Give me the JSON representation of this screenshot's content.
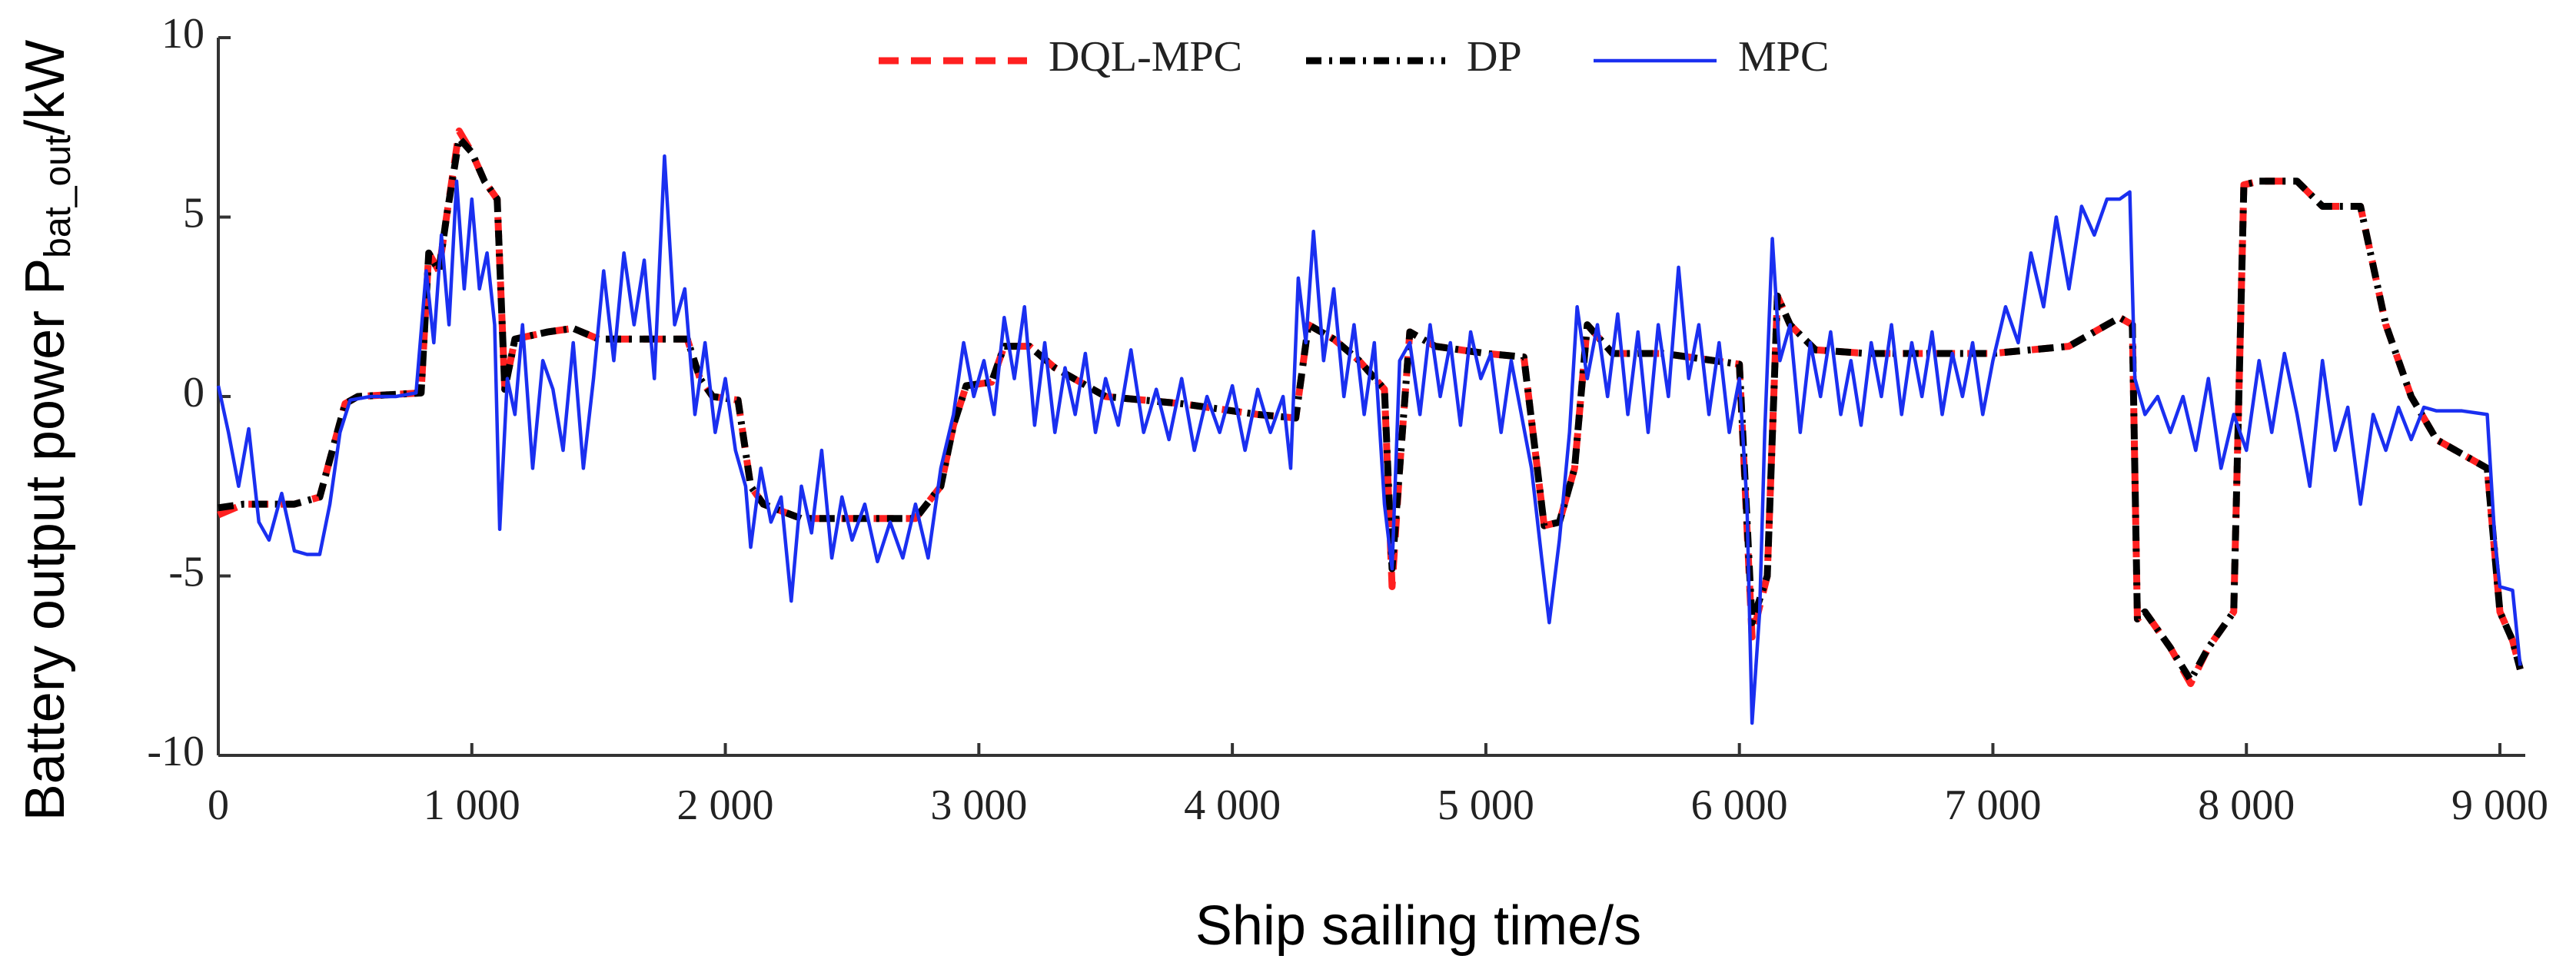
{
  "chart_data": {
    "type": "line",
    "ylabel": "Battery output power P",
    "ylabel_sub": "bat_out",
    "ylabel_unit": "/kW",
    "xlabel": "Ship sailing time/s",
    "xlim": [
      0,
      9100
    ],
    "ylim": [
      -10,
      10
    ],
    "xticks": [
      0,
      {
        "value": 1000,
        "label": "1 000"
      },
      {
        "value": 2000,
        "label": "2 000"
      },
      {
        "value": 3000,
        "label": "3 000"
      },
      {
        "value": 4000,
        "label": "4 000"
      },
      {
        "value": 5000,
        "label": "5 000"
      },
      {
        "value": 6000,
        "label": "6 000"
      },
      {
        "value": 7000,
        "label": "7 000"
      },
      {
        "value": 8000,
        "label": "8 000"
      },
      {
        "value": 9000,
        "label": "9 000"
      }
    ],
    "yticks": [
      -10,
      -5,
      0,
      5,
      10
    ],
    "grid": false,
    "legend": "top",
    "series": [
      {
        "name": "DQL-MPC",
        "color": "#ff2020",
        "dash": "dashed",
        "x": [
          0,
          100,
          300,
          400,
          450,
          500,
          550,
          800,
          830,
          870,
          900,
          950,
          1000,
          1050,
          1100,
          1130,
          1170,
          1300,
          1400,
          1500,
          1850,
          1900,
          1950,
          2050,
          2100,
          2150,
          2300,
          2500,
          2750,
          2850,
          2900,
          2950,
          3050,
          3100,
          3200,
          3300,
          3400,
          3500,
          3800,
          4100,
          4250,
          4300,
          4400,
          4500,
          4600,
          4630,
          4660,
          4700,
          4800,
          5000,
          5150,
          5230,
          5290,
          5350,
          5400,
          5500,
          5700,
          5900,
          6000,
          6050,
          6110,
          6150,
          6200,
          6300,
          6500,
          7000,
          7300,
          7500,
          7550,
          7570,
          7600,
          7700,
          7780,
          7850,
          7950,
          7990,
          8050,
          8200,
          8300,
          8450,
          8550,
          8650,
          8750,
          8950,
          9000,
          9050,
          9080
        ],
        "values": [
          -3.3,
          -3.0,
          -3.0,
          -2.8,
          -1.5,
          -0.2,
          0,
          0.1,
          4.0,
          3.5,
          5,
          7.4,
          6.8,
          6,
          5.5,
          0.2,
          1.6,
          1.8,
          1.9,
          1.6,
          1.6,
          0.5,
          0,
          -0.1,
          -2.5,
          -3.0,
          -3.4,
          -3.4,
          -3.4,
          -2.5,
          -0.8,
          0.3,
          0.4,
          1.4,
          1.4,
          0.8,
          0.4,
          0,
          -0.2,
          -0.5,
          -0.6,
          2.0,
          1.6,
          1.0,
          0.2,
          -5.3,
          -2.0,
          1.8,
          1.4,
          1.2,
          1.1,
          -3.6,
          -3.5,
          -2.0,
          2.0,
          1.2,
          1.2,
          1.0,
          0.9,
          -6.7,
          -5.0,
          2.8,
          2.0,
          1.3,
          1.2,
          1.2,
          1.4,
          2.2,
          2.0,
          -6.2,
          -6.0,
          -7.0,
          -8.0,
          -7.0,
          -6.0,
          5.9,
          6.0,
          6.0,
          5.3,
          5.3,
          2.0,
          0.0,
          -1.2,
          -2.0,
          -6.0,
          -6.8,
          -7.6
        ]
      },
      {
        "name": "DP",
        "color": "#000000",
        "dash": "dashdot",
        "x": [
          0,
          100,
          300,
          400,
          450,
          500,
          550,
          800,
          830,
          870,
          900,
          950,
          1000,
          1050,
          1100,
          1130,
          1170,
          1300,
          1400,
          1500,
          1850,
          1900,
          1950,
          2050,
          2100,
          2150,
          2300,
          2500,
          2750,
          2850,
          2900,
          2950,
          3050,
          3100,
          3200,
          3300,
          3400,
          3500,
          3800,
          4100,
          4250,
          4300,
          4400,
          4500,
          4600,
          4630,
          4660,
          4700,
          4800,
          5000,
          5150,
          5230,
          5290,
          5350,
          5400,
          5500,
          5700,
          5900,
          6000,
          6050,
          6110,
          6150,
          6200,
          6300,
          6500,
          7000,
          7300,
          7500,
          7550,
          7570,
          7600,
          7700,
          7780,
          7850,
          7950,
          7990,
          8050,
          8200,
          8300,
          8450,
          8550,
          8650,
          8750,
          8950,
          9000,
          9050,
          9080
        ],
        "values": [
          -3.1,
          -3.0,
          -3.0,
          -2.8,
          -1.5,
          -0.2,
          0,
          0.1,
          4.0,
          3.5,
          5,
          7.2,
          6.8,
          6,
          5.5,
          0.2,
          1.6,
          1.8,
          1.9,
          1.6,
          1.6,
          0.5,
          0,
          -0.1,
          -2.5,
          -3.0,
          -3.4,
          -3.4,
          -3.4,
          -2.5,
          -0.8,
          0.3,
          0.4,
          1.4,
          1.4,
          0.8,
          0.4,
          0,
          -0.2,
          -0.5,
          -0.6,
          2.0,
          1.6,
          1.0,
          0.2,
          -4.8,
          -2.0,
          1.8,
          1.4,
          1.2,
          1.1,
          -3.6,
          -3.5,
          -2.0,
          2.0,
          1.2,
          1.2,
          1.0,
          0.9,
          -6.3,
          -5.0,
          2.8,
          2.0,
          1.3,
          1.2,
          1.2,
          1.4,
          2.2,
          2.0,
          -6.2,
          -6.0,
          -7.0,
          -7.9,
          -7.0,
          -6.0,
          5.9,
          6.0,
          6.0,
          5.3,
          5.3,
          2.0,
          0.0,
          -1.2,
          -2.0,
          -6.0,
          -6.8,
          -7.6
        ]
      },
      {
        "name": "MPC",
        "color": "#1a2ff0",
        "dash": "solid",
        "x": [
          0,
          40,
          80,
          120,
          160,
          200,
          250,
          300,
          350,
          400,
          440,
          480,
          520,
          600,
          700,
          780,
          820,
          850,
          880,
          910,
          940,
          970,
          1000,
          1030,
          1060,
          1090,
          1110,
          1140,
          1170,
          1200,
          1240,
          1280,
          1320,
          1360,
          1400,
          1440,
          1480,
          1520,
          1560,
          1600,
          1640,
          1680,
          1720,
          1760,
          1800,
          1840,
          1880,
          1920,
          1960,
          2000,
          2040,
          2080,
          2100,
          2140,
          2180,
          2220,
          2260,
          2300,
          2340,
          2380,
          2420,
          2460,
          2500,
          2550,
          2600,
          2650,
          2700,
          2750,
          2800,
          2850,
          2900,
          2940,
          2980,
          3020,
          3060,
          3100,
          3140,
          3180,
          3220,
          3260,
          3300,
          3340,
          3380,
          3420,
          3460,
          3500,
          3550,
          3600,
          3650,
          3700,
          3750,
          3800,
          3850,
          3900,
          3950,
          4000,
          4050,
          4100,
          4150,
          4200,
          4230,
          4260,
          4290,
          4320,
          4360,
          4400,
          4440,
          4480,
          4520,
          4560,
          4600,
          4630,
          4660,
          4700,
          4740,
          4780,
          4820,
          4860,
          4900,
          4940,
          4980,
          5020,
          5060,
          5100,
          5140,
          5180,
          5220,
          5250,
          5290,
          5330,
          5360,
          5400,
          5440,
          5480,
          5520,
          5560,
          5600,
          5640,
          5680,
          5720,
          5760,
          5800,
          5840,
          5880,
          5920,
          5960,
          6000,
          6030,
          6050,
          6080,
          6100,
          6130,
          6160,
          6200,
          6240,
          6280,
          6320,
          6360,
          6400,
          6440,
          6480,
          6520,
          6560,
          6600,
          6640,
          6680,
          6720,
          6760,
          6800,
          6840,
          6880,
          6920,
          6960,
          7000,
          7050,
          7100,
          7150,
          7200,
          7250,
          7300,
          7350,
          7400,
          7450,
          7500,
          7540,
          7560,
          7600,
          7650,
          7700,
          7750,
          7800,
          7850,
          7900,
          7950,
          8000,
          8050,
          8100,
          8150,
          8200,
          8250,
          8300,
          8350,
          8400,
          8450,
          8500,
          8550,
          8600,
          8650,
          8700,
          8750,
          8850,
          8950,
          8980,
          9000,
          9050,
          9080
        ],
        "values": [
          0.3,
          -1.0,
          -2.5,
          -0.9,
          -3.5,
          -4.0,
          -2.7,
          -4.3,
          -4.4,
          -4.4,
          -3.0,
          -1.0,
          -0.1,
          0,
          0,
          0.1,
          3.5,
          1.5,
          4.5,
          2.0,
          6.0,
          3.0,
          5.5,
          3.0,
          4.0,
          2.0,
          -3.7,
          0.5,
          -0.5,
          2.0,
          -2.0,
          1.0,
          0.2,
          -1.5,
          1.5,
          -2.0,
          0.5,
          3.5,
          1.0,
          4.0,
          2.0,
          3.8,
          0.5,
          6.7,
          2.0,
          3.0,
          -0.5,
          1.5,
          -1.0,
          0.5,
          -1.5,
          -2.5,
          -4.2,
          -2.0,
          -3.5,
          -2.8,
          -5.7,
          -2.5,
          -3.8,
          -1.5,
          -4.5,
          -2.8,
          -4.0,
          -3.0,
          -4.6,
          -3.5,
          -4.5,
          -3.0,
          -4.5,
          -2.0,
          -0.5,
          1.5,
          0.0,
          1.0,
          -0.5,
          2.2,
          0.5,
          2.5,
          -0.8,
          1.5,
          -1.0,
          0.8,
          -0.5,
          1.2,
          -1.0,
          0.5,
          -0.8,
          1.3,
          -1.0,
          0.2,
          -1.2,
          0.5,
          -1.5,
          0.0,
          -1.0,
          0.3,
          -1.5,
          0.2,
          -1.0,
          0.0,
          -2.0,
          3.3,
          1.5,
          4.6,
          1.0,
          3.0,
          0.0,
          2.0,
          -0.5,
          1.5,
          -3.0,
          -4.8,
          1.0,
          1.5,
          -0.5,
          2.0,
          0.0,
          1.5,
          -0.8,
          1.8,
          0.5,
          1.2,
          -1.0,
          1.0,
          -0.5,
          -2.0,
          -4.5,
          -6.3,
          -4.0,
          -1.0,
          2.5,
          0.5,
          2.0,
          0.0,
          2.3,
          -0.5,
          1.8,
          -1.0,
          2.0,
          0.0,
          3.6,
          0.5,
          2.0,
          -0.5,
          1.5,
          -1.0,
          0.5,
          -3.0,
          -9.1,
          -6.0,
          -1.0,
          4.4,
          1.0,
          2.0,
          -1.0,
          1.5,
          0.0,
          1.8,
          -0.5,
          1.0,
          -0.8,
          1.5,
          0.0,
          2.0,
          -0.5,
          1.5,
          0.0,
          1.8,
          -0.5,
          1.2,
          0.0,
          1.5,
          -0.5,
          1.0,
          2.5,
          1.5,
          4.0,
          2.5,
          5.0,
          3.0,
          5.3,
          4.5,
          5.5,
          5.5,
          5.7,
          0.5,
          -0.5,
          0.0,
          -1.0,
          0.0,
          -1.5,
          0.5,
          -2.0,
          -0.5,
          -1.5,
          1.0,
          -1.0,
          1.2,
          -0.5,
          -2.5,
          1.0,
          -1.5,
          -0.3,
          -3.0,
          -0.5,
          -1.5,
          -0.3,
          -1.2,
          -0.3,
          -0.4,
          -0.4,
          -0.5,
          -4.0,
          -5.3,
          -5.4,
          -7.5
        ]
      }
    ]
  }
}
